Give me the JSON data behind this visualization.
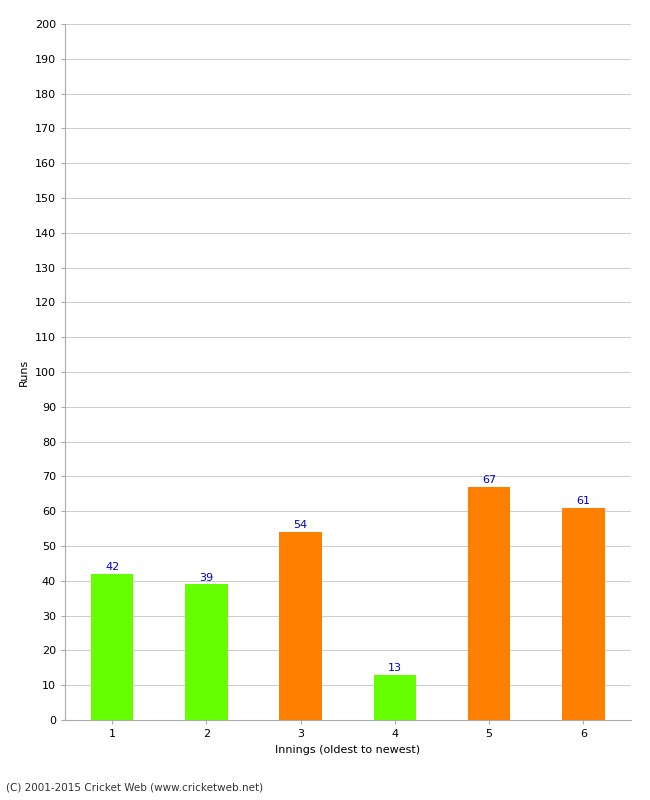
{
  "categories": [
    "1",
    "2",
    "3",
    "4",
    "5",
    "6"
  ],
  "values": [
    42,
    39,
    54,
    13,
    67,
    61
  ],
  "bar_colors": [
    "#66ff00",
    "#66ff00",
    "#ff8000",
    "#66ff00",
    "#ff8000",
    "#ff8000"
  ],
  "xlabel": "Innings (oldest to newest)",
  "ylabel": "Runs",
  "ylim": [
    0,
    200
  ],
  "yticks": [
    0,
    10,
    20,
    30,
    40,
    50,
    60,
    70,
    80,
    90,
    100,
    110,
    120,
    130,
    140,
    150,
    160,
    170,
    180,
    190,
    200
  ],
  "label_color": "#0000cc",
  "label_fontsize": 8,
  "footer": "(C) 2001-2015 Cricket Web (www.cricketweb.net)",
  "background_color": "#ffffff",
  "grid_color": "#cccccc",
  "bar_width": 0.45,
  "tick_fontsize": 8,
  "xlabel_fontsize": 8,
  "ylabel_fontsize": 8
}
